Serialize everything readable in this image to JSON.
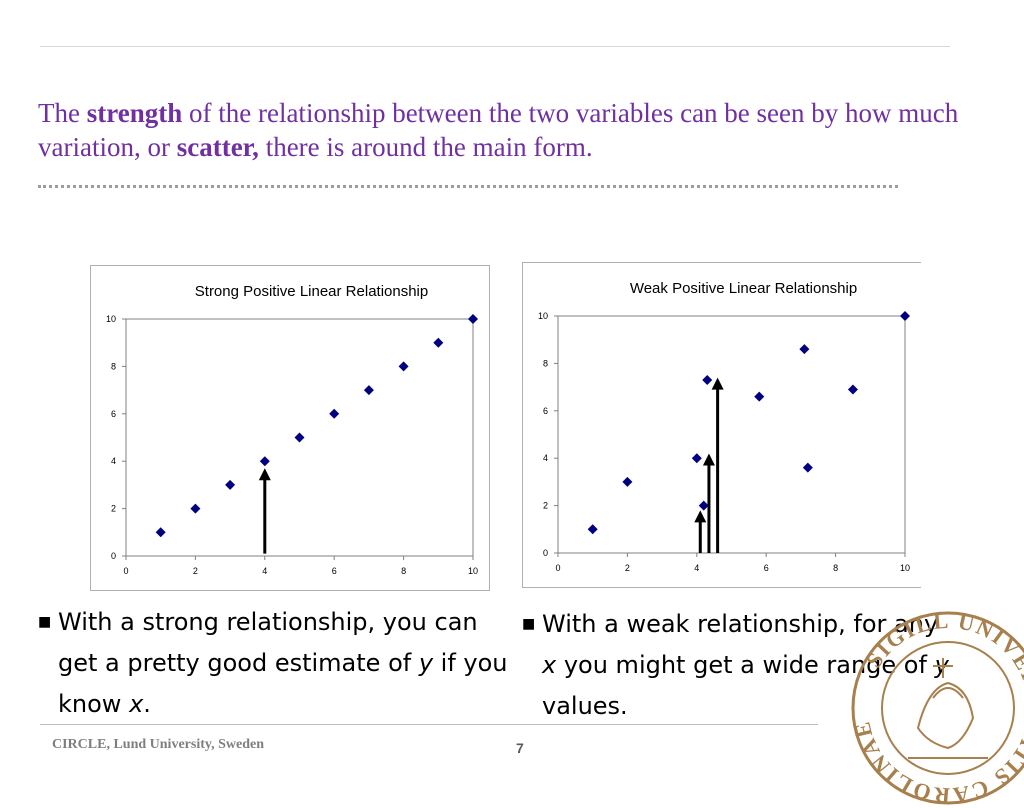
{
  "slide": {
    "title_parts": [
      {
        "text": "The ",
        "bold": false
      },
      {
        "text": "strength",
        "bold": true
      },
      {
        "text": " of the relationship between the two variables can be seen by how much variation, or ",
        "bold": false
      },
      {
        "text": "scatter,",
        "bold": true
      },
      {
        "text": " there is around the main form.",
        "bold": false
      }
    ],
    "title_color": "#7030a0",
    "bullets": [
      {
        "marker": "■",
        "parts": [
          {
            "text": "With a strong relationship, you can get a pretty good estimate of ",
            "italic": false
          },
          {
            "text": "y",
            "italic": true
          },
          {
            "text": " if you know ",
            "italic": false
          },
          {
            "text": "x",
            "italic": true
          },
          {
            "text": ".",
            "italic": false
          }
        ]
      },
      {
        "marker": "■",
        "parts": [
          {
            "text": "With a weak relationship, for any ",
            "italic": false
          },
          {
            "text": "x",
            "italic": true
          },
          {
            "text": " you might get a wide range of  ",
            "italic": false
          },
          {
            "text": "y",
            "italic": true
          },
          {
            "text": " values.",
            "italic": false
          }
        ]
      }
    ],
    "footer": {
      "organization": "CIRCLE, Lund University, Sweden",
      "page_number": "7"
    },
    "seal": {
      "lettering": "SIGILL UNIVERSITATIS CAROLINAE RVMQVE",
      "color": "#a7804d",
      "icon": "lund-university-seal"
    }
  },
  "chart_data": [
    {
      "type": "scatter",
      "title": "Strong Positive Linear Relationship",
      "xlim": [
        0,
        10
      ],
      "ylim": [
        0,
        10
      ],
      "xticks": [
        0,
        2,
        4,
        6,
        8,
        10
      ],
      "yticks": [
        0,
        2,
        4,
        6,
        8,
        10
      ],
      "grid": false,
      "marker_color": "#000080",
      "points": [
        [
          1,
          1
        ],
        [
          2,
          2
        ],
        [
          3,
          3
        ],
        [
          4,
          4
        ],
        [
          5,
          5
        ],
        [
          6,
          6
        ],
        [
          7,
          7
        ],
        [
          8,
          8
        ],
        [
          9,
          9
        ],
        [
          10,
          10
        ]
      ],
      "annotations": [
        {
          "type": "arrow",
          "x": 4,
          "y_from": 0.1,
          "y_to": 3.7
        }
      ]
    },
    {
      "type": "scatter",
      "title": "Weak Positive Linear Relationship",
      "xlim": [
        0,
        10
      ],
      "ylim": [
        0,
        10
      ],
      "xticks": [
        0,
        2,
        4,
        6,
        8,
        10
      ],
      "yticks": [
        0,
        2,
        4,
        6,
        8,
        10
      ],
      "grid": false,
      "marker_color": "#000080",
      "points": [
        [
          1,
          1
        ],
        [
          2,
          3
        ],
        [
          4,
          4
        ],
        [
          4.2,
          2
        ],
        [
          4.3,
          7.3
        ],
        [
          5.8,
          6.6
        ],
        [
          7.1,
          8.6
        ],
        [
          7.2,
          3.6
        ],
        [
          8.5,
          6.9
        ],
        [
          10,
          10
        ]
      ],
      "annotations": [
        {
          "type": "arrow",
          "x": 4.1,
          "y_from": 0,
          "y_to": 1.8
        },
        {
          "type": "arrow",
          "x": 4.35,
          "y_from": 0,
          "y_to": 4.2
        },
        {
          "type": "arrow",
          "x": 4.6,
          "y_from": 0,
          "y_to": 7.4
        }
      ]
    }
  ]
}
